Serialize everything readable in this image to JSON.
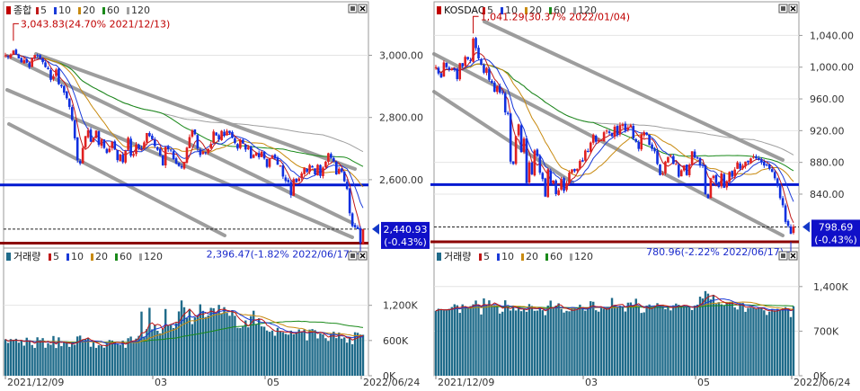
{
  "colors": {
    "up": "#e02020",
    "down": "#1030e0",
    "ma5": "#c01818",
    "ma10": "#1a3ad8",
    "ma20": "#c88a10",
    "ma60": "#1a8a1a",
    "ma120": "#a0a0a0",
    "support_line": "#0018d0",
    "low_line": "#8b0000",
    "channel": "#8c8c8c",
    "volume_bar": "#1f6b8a",
    "last_label_bg": "#1010c8"
  },
  "panels": [
    {
      "id": "kospi",
      "price": {
        "legend": {
          "title": "종합",
          "periods": [
            "5",
            "10",
            "20",
            "60",
            "120"
          ]
        },
        "high_annotation": "3,043.83(24.70% 2021/12/13)",
        "low_annotation": "2,396.47(-1.82% 2022/06/17)",
        "last_value": "2,440.93",
        "last_change": "(-0.43%)",
        "yticks": [
          "3,000.00",
          "2,800.00",
          "2,600.00"
        ]
      },
      "volume": {
        "legend": {
          "title": "거래량",
          "periods": [
            "5",
            "10",
            "20",
            "60",
            "120"
          ]
        },
        "yticks": [
          "1,200K",
          "600K",
          "0K"
        ]
      },
      "xaxis": {
        "labels": [
          "2021/12/09",
          "03",
          "05",
          "2022/06/24"
        ]
      }
    },
    {
      "id": "kosdaq",
      "price": {
        "legend": {
          "title": "KOSDAQ",
          "periods": [
            "5",
            "10",
            "20",
            "60",
            "120"
          ]
        },
        "high_annotation": "1,041.29(30.37% 2022/01/04)",
        "low_annotation": "780.96(-2.22% 2022/06/17)",
        "last_value": "798.69",
        "last_change": "(-0.43%)",
        "yticks": [
          "1,040.00",
          "1,000.00",
          "960.00",
          "920.00",
          "880.00",
          "840.00"
        ]
      },
      "volume": {
        "legend": {
          "title": "거래량",
          "periods": [
            "5",
            "10",
            "20",
            "60",
            "120"
          ]
        },
        "yticks": [
          "1,400K",
          "700K",
          "0K"
        ]
      },
      "xaxis": {
        "labels": [
          "2021/12/09",
          "03",
          "05",
          "2022/06/24"
        ]
      }
    }
  ],
  "chart_data": [
    {
      "type": "candlestick",
      "title": "종합",
      "x_start": "2021/12/09",
      "x_end": "2022/06/24",
      "x_ticks": [
        "2021/12/09",
        "03",
        "05",
        "2022/06/24"
      ],
      "ylim": [
        2380,
        3120
      ],
      "y_ticks": [
        3000,
        2800,
        2600
      ],
      "series": [
        {
          "name": "종합",
          "close": [
            3000,
            2995,
            3003,
            3015,
            3003,
            2990,
            2978,
            2985,
            2976,
            2962,
            2992,
            3001,
            2998,
            2990,
            2978,
            2962,
            2955,
            2921,
            2932,
            2954,
            2907,
            2900,
            2880,
            2862,
            2834,
            2792,
            2733,
            2663,
            2652,
            2702,
            2740,
            2759,
            2722,
            2735,
            2758,
            2712,
            2729,
            2702,
            2686,
            2700,
            2722,
            2697,
            2663,
            2682,
            2656,
            2693,
            2735,
            2677,
            2683,
            2713,
            2700,
            2700,
            2720,
            2750,
            2740,
            2730,
            2708,
            2696,
            2677,
            2646,
            2705,
            2698,
            2694,
            2666,
            2652,
            2644,
            2639,
            2657,
            2703,
            2737,
            2759,
            2746,
            2700,
            2679,
            2690,
            2686,
            2699,
            2715,
            2755,
            2742,
            2729,
            2757,
            2741,
            2757,
            2750,
            2735,
            2718,
            2700,
            2728,
            2716,
            2697,
            2704,
            2668,
            2680,
            2687,
            2672,
            2690,
            2668,
            2641,
            2669,
            2677,
            2668,
            2648,
            2645,
            2610,
            2596,
            2592,
            2550,
            2602,
            2592,
            2604,
            2620,
            2639,
            2625,
            2647,
            2639,
            2617,
            2648,
            2612,
            2639,
            2658,
            2685,
            2670,
            2658,
            2617,
            2635,
            2625,
            2595,
            2570,
            2492,
            2451,
            2447,
            2441,
            2396,
            2440
          ]
        }
      ],
      "annotations": [
        {
          "label": "3,043.83(24.70% 2021/12/13)",
          "x": "2021/12/13",
          "y": 3043.83
        },
        {
          "label": "2,396.47(-1.82% 2022/06/17)",
          "x": "2022/06/17",
          "y": 2396.47
        },
        {
          "label": "2,440.93 (-0.43%)",
          "x": "2022/06/24",
          "y": 2440.93
        }
      ],
      "horizontal_lines": [
        {
          "y": 2583,
          "color": "#0018d0"
        },
        {
          "y": 2440.93,
          "style": "dashed"
        },
        {
          "y": 2396,
          "color": "#8b0000"
        }
      ]
    },
    {
      "type": "bar",
      "title": "거래량",
      "x_start": "2021/12/09",
      "x_end": "2022/06/24",
      "x_ticks": [
        "2021/12/09",
        "03",
        "05",
        "2022/06/24"
      ],
      "ylim": [
        0,
        1900
      ],
      "y_ticks": [
        0,
        600,
        1200
      ],
      "y_unit": "K",
      "series": [
        {
          "name": "거래량",
          "values": [
            621,
            560,
            625,
            599,
            630,
            564,
            605,
            513,
            648,
            603,
            524,
            474,
            655,
            608,
            641,
            477,
            552,
            528,
            677,
            473,
            654,
            504,
            574,
            571,
            492,
            574,
            529,
            669,
            684,
            617,
            625,
            639,
            494,
            598,
            474,
            520,
            514,
            478,
            550,
            609,
            599,
            562,
            542,
            522,
            596,
            476,
            640,
            667,
            585,
            633,
            679,
            1093,
            667,
            796,
            1158,
            790,
            869,
            766,
            722,
            801,
            1137,
            853,
            864,
            813,
            897,
            1096,
            1283,
            1168,
            984,
            1138,
            880,
            995,
            1022,
            1217,
            1106,
            1000,
            1029,
            1157,
            1151,
            1065,
            1208,
            1065,
            1169,
            1071,
            1022,
            1118,
            1022,
            817,
            812,
            851,
            942,
            825,
            1016,
            1108,
            878,
            979,
            841,
            835,
            771,
            749,
            770,
            681,
            816,
            762,
            741,
            713,
            700,
            768,
            705,
            738,
            789,
            752,
            787,
            602,
            786,
            795,
            777,
            636,
            722,
            704,
            640,
            593,
            715,
            751,
            641,
            736,
            632,
            653,
            564,
            656,
            537,
            741,
            732,
            702,
            698
          ]
        }
      ]
    },
    {
      "type": "candlestick",
      "title": "KOSDAQ",
      "x_start": "2021/12/09",
      "x_end": "2022/06/24",
      "x_ticks": [
        "2021/12/09",
        "03",
        "05",
        "2022/06/24"
      ],
      "ylim": [
        772,
        1062
      ],
      "y_ticks": [
        1040,
        1000,
        960,
        920,
        880,
        840
      ],
      "series": [
        {
          "name": "KOSDAQ",
          "close": [
            1000,
            992,
            987,
            1006,
            1000,
            997,
            998,
            997,
            985,
            1005,
            1001,
            1013,
            1010,
            1008,
            1036,
            1024,
            1011,
            1003,
            993,
            999,
            984,
            980,
            969,
            976,
            968,
            968,
            943,
            941,
            881,
            878,
            913,
            928,
            893,
            910,
            854,
            880,
            865,
            895,
            888,
            867,
            859,
            837,
            871,
            853,
            857,
            840,
            845,
            859,
            844,
            854,
            867,
            871,
            869,
            872,
            882,
            881,
            895,
            894,
            905,
            915,
            906,
            908,
            908,
            918,
            920,
            917,
            913,
            925,
            915,
            927,
            928,
            920,
            924,
            927,
            910,
            906,
            897,
            915,
            918,
            915,
            902,
            897,
            894,
            878,
            864,
            866,
            881,
            887,
            889,
            878,
            878,
            862,
            870,
            876,
            864,
            877,
            894,
            886,
            885,
            876,
            876,
            840,
            835,
            860,
            863,
            854,
            849,
            866,
            848,
            856,
            868,
            862,
            871,
            880,
            872,
            876,
            881,
            880,
            885,
            887,
            885,
            883,
            880,
            876,
            877,
            872,
            868,
            860,
            851,
            835,
            826,
            805,
            800,
            790,
            799
          ]
        }
      ],
      "annotations": [
        {
          "label": "1,041.29(30.37% 2022/01/04)",
          "x": "2022/01/04",
          "y": 1041.29
        },
        {
          "label": "780.96(-2.22% 2022/06/17)",
          "x": "2022/06/17",
          "y": 780.96
        },
        {
          "label": "798.69 (-0.43%)",
          "x": "2022/06/24",
          "y": 798.69
        }
      ],
      "horizontal_lines": [
        {
          "y": 852,
          "color": "#0018d0"
        },
        {
          "y": 798.69,
          "style": "dashed"
        },
        {
          "y": 780,
          "color": "#8b0000"
        }
      ]
    },
    {
      "type": "bar",
      "title": "거래량",
      "x_start": "2021/12/09",
      "x_end": "2022/06/24",
      "x_ticks": [
        "2021/12/09",
        "03",
        "05",
        "2022/06/24"
      ],
      "ylim": [
        0,
        1750
      ],
      "y_ticks": [
        0,
        700,
        1400
      ],
      "y_unit": "K",
      "series": [
        {
          "name": "거래량",
          "values": [
            1018,
            1052,
            1046,
            1023,
            1023,
            1050,
            1078,
            1122,
            1107,
            987,
            1120,
            1092,
            1072,
            1093,
            1121,
            1180,
            1111,
            962,
            1214,
            1103,
            1183,
            1106,
            1107,
            1108,
            976,
            1005,
            1184,
            1079,
            1024,
            1091,
            1024,
            1077,
            1014,
            1054,
            1004,
            1125,
            1095,
            1020,
            1023,
            1073,
            1029,
            951,
            1102,
            1179,
            1071,
            1101,
            1137,
            1047,
            992,
            1019,
            1011,
            1060,
            1063,
            1045,
            1116,
            1075,
            1021,
            1053,
            1170,
            1161,
            1028,
            1006,
            1063,
            1054,
            1066,
            1066,
            1221,
            1111,
            1084,
            1099,
            1087,
            1008,
            1147,
            1150,
            1071,
            1209,
            1084,
            986,
            995,
            1102,
            1119,
            1079,
            1104,
            1139,
            1099,
            1116,
            1045,
            1070,
            1026,
            1105,
            1133,
            1114,
            1093,
            1096,
            1081,
            1072,
            1031,
            1102,
            1116,
            1241,
            1213,
            1329,
            1289,
            1197,
            1271,
            1127,
            1155,
            1121,
            1104,
            1156,
            1155,
            1155,
            1073,
            1040,
            1141,
            1142,
            1003,
            1064,
            1070,
            1072,
            1049,
            1057,
            1062,
            1027,
            955,
            1007,
            1048,
            1027,
            1049,
            1034,
            1054,
            1076,
            1044,
            921,
            1091
          ]
        }
      ]
    }
  ]
}
